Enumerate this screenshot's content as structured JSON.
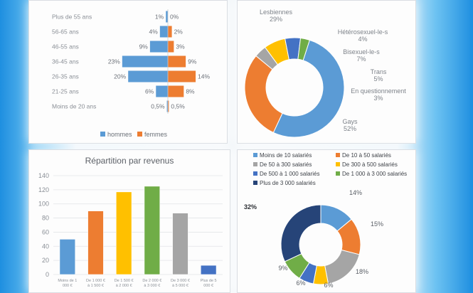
{
  "chart_data": [
    {
      "type": "bar",
      "orientation": "horizontal-pyramid",
      "categories": [
        "Plus de 55 ans",
        "56-65 ans",
        "46-55 ans",
        "36-45 ans",
        "26-35 ans",
        "21-25 ans",
        "Moins de 20 ans"
      ],
      "series": [
        {
          "name": "hommes",
          "values": [
            1,
            4,
            9,
            23,
            20,
            6,
            0.5
          ],
          "labels": [
            "1%",
            "4%",
            "9%",
            "23%",
            "20%",
            "6%",
            "0,5%"
          ],
          "color": "#5b9bd5"
        },
        {
          "name": "femmes",
          "values": [
            0,
            2,
            3,
            9,
            14,
            8,
            0.5
          ],
          "labels": [
            "0%",
            "2%",
            "3%",
            "9%",
            "14%",
            "8%",
            "0,5%"
          ],
          "color": "#ed7d31"
        }
      ],
      "legend": "bottom"
    },
    {
      "type": "pie",
      "variant": "donut",
      "slices": [
        {
          "name": "Lesbiennes",
          "value": 29,
          "label": "29%",
          "color": "#ed7d31"
        },
        {
          "name": "Hétérosexuel-le-s",
          "value": 4,
          "label": "4%",
          "color": "#a5a5a5"
        },
        {
          "name": "Bisexuel-le-s",
          "value": 7,
          "label": "7%",
          "color": "#ffc000"
        },
        {
          "name": "Trans",
          "value": 5,
          "label": "5%",
          "color": "#4472c4"
        },
        {
          "name": "En questionnement",
          "value": 3,
          "label": "3%",
          "color": "#70ad47"
        },
        {
          "name": "Gays",
          "value": 52,
          "label": "52%",
          "color": "#5b9bd5"
        }
      ]
    },
    {
      "type": "bar",
      "title": "Répartition par revenus",
      "categories": [
        "Moins de 1 000 €",
        "De 1 000 € à 1 500 €",
        "De 1 500 € à 2 000 €",
        "De 2 000 € à 3 000 €",
        "De 3 000 € à 5 000 €",
        "Plus de 5 000 €"
      ],
      "values": [
        50,
        90,
        117,
        125,
        87,
        13
      ],
      "colors": [
        "#5b9bd5",
        "#ed7d31",
        "#ffc000",
        "#70ad47",
        "#a5a5a5",
        "#4472c4"
      ],
      "ylim": [
        0,
        140
      ],
      "yticks": [
        "0",
        "20",
        "40",
        "60",
        "80",
        "100",
        "120",
        "140"
      ],
      "grid": true
    },
    {
      "type": "pie",
      "variant": "donut",
      "legend": "top",
      "slices": [
        {
          "name": "Moins de 10 salariés",
          "value": 14,
          "label": "14%",
          "color": "#5b9bd5"
        },
        {
          "name": "De 10 à 50 salariés",
          "value": 15,
          "label": "15%",
          "color": "#ed7d31"
        },
        {
          "name": "De 50 à 300 salariés",
          "value": 18,
          "label": "18%",
          "color": "#a5a5a5"
        },
        {
          "name": "De 300 à 500 salariés",
          "value": 6,
          "label": "6%",
          "color": "#ffc000"
        },
        {
          "name": "De 500 à 1 000 salariés",
          "value": 6,
          "label": "6%",
          "color": "#4472c4"
        },
        {
          "name": "De 1 000 à 3 000 salariés",
          "value": 9,
          "label": "9%",
          "color": "#70ad47"
        },
        {
          "name": "Plus de 3 000 salariés",
          "value": 32,
          "label": "32%",
          "color": "#264478"
        }
      ]
    }
  ]
}
